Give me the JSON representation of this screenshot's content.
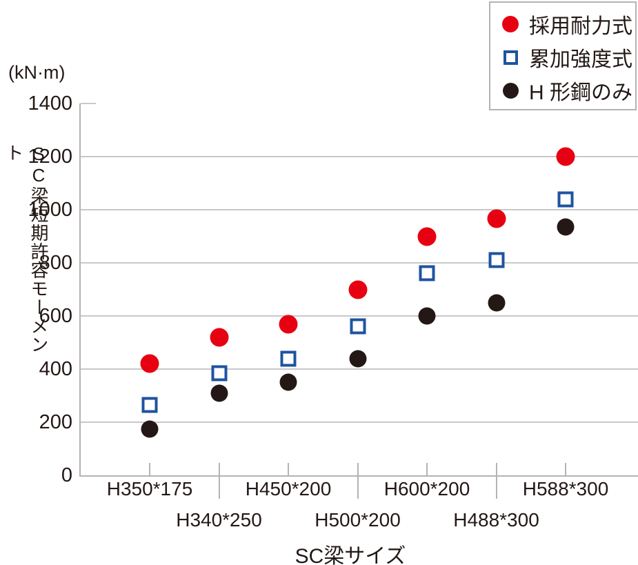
{
  "colors": {
    "red": "#e60012",
    "blue": "#1f53a0",
    "black": "#231815",
    "axis": "#b3b3b3",
    "grid": "#c8c8c8",
    "text": "#231815",
    "background": "#ffffff"
  },
  "chart_data": {
    "type": "scatter",
    "title": "",
    "unit_label": "(kN·m)",
    "ylabel": "SC梁短期許容モーメント",
    "xlabel": "SC梁サイズ",
    "categories": [
      "H350*175",
      "H340*250",
      "H450*200",
      "H500*200",
      "H600*200",
      "H488*300",
      "H588*300"
    ],
    "x_label_rows": [
      1,
      2,
      1,
      2,
      1,
      2,
      1
    ],
    "y_ticks": [
      0,
      200,
      400,
      600,
      800,
      1000,
      1200,
      1400
    ],
    "ylim": [
      0,
      1400
    ],
    "grid": "horizontal-only",
    "legend_position": "top-right",
    "series": [
      {
        "name": "採用耐力式",
        "marker": "circle-filled",
        "color": "#e60012",
        "values": [
          420,
          520,
          570,
          700,
          900,
          965,
          1200
        ]
      },
      {
        "name": "累加強度式",
        "marker": "square-open",
        "color": "#1f53a0",
        "values": [
          265,
          385,
          440,
          560,
          760,
          810,
          1040
        ]
      },
      {
        "name": "H 形鋼のみ",
        "marker": "circle-filled",
        "color": "#231815",
        "values": [
          175,
          310,
          350,
          440,
          600,
          650,
          935
        ]
      }
    ]
  }
}
